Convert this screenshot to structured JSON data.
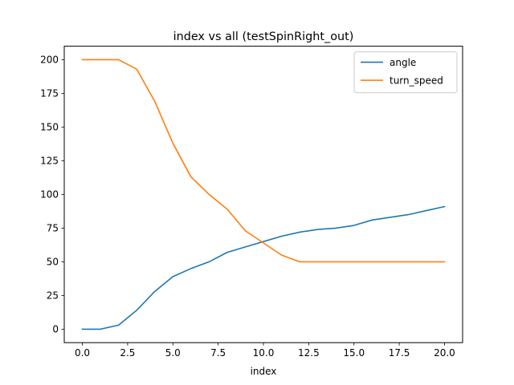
{
  "chart_data": {
    "type": "line",
    "title": "index vs all (testSpinRight_out)",
    "xlabel": "index",
    "ylabel": "",
    "xlim": [
      -1.0,
      21.0
    ],
    "ylim": [
      -10.0,
      210.0
    ],
    "xticks": [
      0.0,
      2.5,
      5.0,
      7.5,
      10.0,
      12.5,
      15.0,
      17.5,
      20.0
    ],
    "xtick_labels": [
      "0.0",
      "2.5",
      "5.0",
      "7.5",
      "10.0",
      "12.5",
      "15.0",
      "17.5",
      "20.0"
    ],
    "yticks": [
      0,
      25,
      50,
      75,
      100,
      125,
      150,
      175,
      200
    ],
    "ytick_labels": [
      "0",
      "25",
      "50",
      "75",
      "100",
      "125",
      "150",
      "175",
      "200"
    ],
    "x": [
      0,
      1,
      2,
      3,
      4,
      5,
      6,
      7,
      8,
      9,
      10,
      11,
      12,
      13,
      14,
      15,
      16,
      17,
      18,
      19,
      20
    ],
    "series": [
      {
        "name": "angle",
        "color": "#1f77b4",
        "values": [
          0,
          0,
          3,
          14,
          28,
          39,
          45,
          50,
          57,
          61,
          65,
          69,
          72,
          74,
          75,
          77,
          81,
          83,
          85,
          88,
          91
        ]
      },
      {
        "name": "turn_speed",
        "color": "#ff7f0e",
        "values": [
          200,
          200,
          200,
          193,
          169,
          138,
          113,
          100,
          89,
          73,
          64,
          55,
          50,
          50,
          50,
          50,
          50,
          50,
          50,
          50,
          50
        ]
      }
    ],
    "grid": false,
    "legend": "top-right"
  }
}
